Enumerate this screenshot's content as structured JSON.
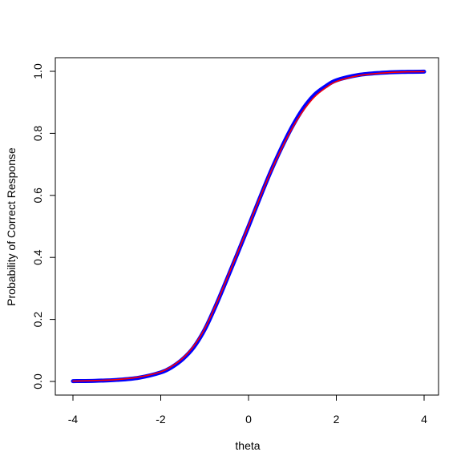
{
  "chart_data": {
    "type": "line",
    "title": "",
    "xlabel": "theta",
    "ylabel": "Probability of Correct Response",
    "xlim": [
      -4,
      4
    ],
    "ylim": [
      0,
      1
    ],
    "x_ticks": [
      -4,
      -2,
      0,
      2,
      4
    ],
    "x_tick_labels": [
      "-4",
      "-2",
      "0",
      "2",
      "4"
    ],
    "y_ticks": [
      0,
      0.2,
      0.4,
      0.6,
      0.8,
      1
    ],
    "y_tick_labels": [
      "0.0",
      "0.2",
      "0.4",
      "0.6",
      "0.8",
      "1.0"
    ],
    "grid": false,
    "legend": "none",
    "series": [
      {
        "color": "#0000ff",
        "x": [
          -4.0,
          -3.5,
          -3.0,
          -2.5,
          -2.0,
          -1.75,
          -1.5,
          -1.25,
          -1.0,
          -0.75,
          -0.5,
          -0.25,
          0.0,
          0.25,
          0.5,
          0.75,
          1.0,
          1.25,
          1.5,
          1.75,
          2.0,
          2.5,
          3.0,
          3.5,
          4.0
        ],
        "y": [
          0.001,
          0.002,
          0.005,
          0.012,
          0.029,
          0.046,
          0.072,
          0.11,
          0.167,
          0.243,
          0.327,
          0.413,
          0.5,
          0.589,
          0.675,
          0.753,
          0.823,
          0.881,
          0.924,
          0.951,
          0.971,
          0.988,
          0.995,
          0.998,
          0.999
        ]
      },
      {
        "color": "#ff0000",
        "x": [
          -4.0,
          -3.5,
          -3.0,
          -2.5,
          -2.0,
          -1.75,
          -1.5,
          -1.25,
          -1.0,
          -0.75,
          -0.5,
          -0.25,
          0.0,
          0.25,
          0.5,
          0.75,
          1.0,
          1.25,
          1.5,
          1.75,
          2.0,
          2.5,
          3.0,
          3.5,
          4.0
        ],
        "y": [
          0.001,
          0.003,
          0.006,
          0.014,
          0.031,
          0.049,
          0.075,
          0.114,
          0.17,
          0.245,
          0.329,
          0.415,
          0.502,
          0.59,
          0.674,
          0.75,
          0.818,
          0.874,
          0.917,
          0.946,
          0.967,
          0.986,
          0.994,
          0.998,
          0.999
        ]
      }
    ]
  }
}
